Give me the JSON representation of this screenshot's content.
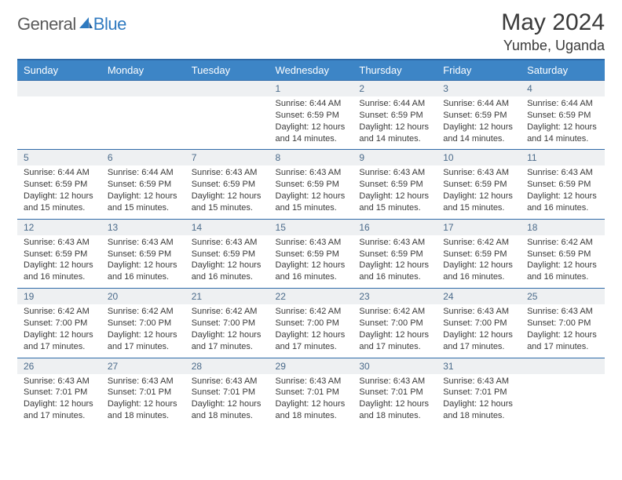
{
  "brand": {
    "part1": "General",
    "part2": "Blue"
  },
  "title": "May 2024",
  "location": "Yumbe, Uganda",
  "colors": {
    "header_bg": "#3d85c6",
    "header_text": "#ffffff",
    "rule": "#2f6aa8",
    "date_bg": "#eef0f2",
    "date_text": "#4a6a8a",
    "body_text": "#3a3a3a",
    "brand_gray": "#5a5a5a",
    "brand_blue": "#2f7ac0"
  },
  "typography": {
    "title_fontsize": 30,
    "location_fontsize": 18,
    "dayhead_fontsize": 13,
    "date_fontsize": 12,
    "info_fontsize": 11
  },
  "day_names": [
    "Sunday",
    "Monday",
    "Tuesday",
    "Wednesday",
    "Thursday",
    "Friday",
    "Saturday"
  ],
  "weeks": [
    {
      "dates": [
        "",
        "",
        "",
        "1",
        "2",
        "3",
        "4"
      ],
      "info": [
        "",
        "",
        "",
        "Sunrise: 6:44 AM\nSunset: 6:59 PM\nDaylight: 12 hours and 14 minutes.",
        "Sunrise: 6:44 AM\nSunset: 6:59 PM\nDaylight: 12 hours and 14 minutes.",
        "Sunrise: 6:44 AM\nSunset: 6:59 PM\nDaylight: 12 hours and 14 minutes.",
        "Sunrise: 6:44 AM\nSunset: 6:59 PM\nDaylight: 12 hours and 14 minutes."
      ]
    },
    {
      "dates": [
        "5",
        "6",
        "7",
        "8",
        "9",
        "10",
        "11"
      ],
      "info": [
        "Sunrise: 6:44 AM\nSunset: 6:59 PM\nDaylight: 12 hours and 15 minutes.",
        "Sunrise: 6:44 AM\nSunset: 6:59 PM\nDaylight: 12 hours and 15 minutes.",
        "Sunrise: 6:43 AM\nSunset: 6:59 PM\nDaylight: 12 hours and 15 minutes.",
        "Sunrise: 6:43 AM\nSunset: 6:59 PM\nDaylight: 12 hours and 15 minutes.",
        "Sunrise: 6:43 AM\nSunset: 6:59 PM\nDaylight: 12 hours and 15 minutes.",
        "Sunrise: 6:43 AM\nSunset: 6:59 PM\nDaylight: 12 hours and 15 minutes.",
        "Sunrise: 6:43 AM\nSunset: 6:59 PM\nDaylight: 12 hours and 16 minutes."
      ]
    },
    {
      "dates": [
        "12",
        "13",
        "14",
        "15",
        "16",
        "17",
        "18"
      ],
      "info": [
        "Sunrise: 6:43 AM\nSunset: 6:59 PM\nDaylight: 12 hours and 16 minutes.",
        "Sunrise: 6:43 AM\nSunset: 6:59 PM\nDaylight: 12 hours and 16 minutes.",
        "Sunrise: 6:43 AM\nSunset: 6:59 PM\nDaylight: 12 hours and 16 minutes.",
        "Sunrise: 6:43 AM\nSunset: 6:59 PM\nDaylight: 12 hours and 16 minutes.",
        "Sunrise: 6:43 AM\nSunset: 6:59 PM\nDaylight: 12 hours and 16 minutes.",
        "Sunrise: 6:42 AM\nSunset: 6:59 PM\nDaylight: 12 hours and 16 minutes.",
        "Sunrise: 6:42 AM\nSunset: 6:59 PM\nDaylight: 12 hours and 16 minutes."
      ]
    },
    {
      "dates": [
        "19",
        "20",
        "21",
        "22",
        "23",
        "24",
        "25"
      ],
      "info": [
        "Sunrise: 6:42 AM\nSunset: 7:00 PM\nDaylight: 12 hours and 17 minutes.",
        "Sunrise: 6:42 AM\nSunset: 7:00 PM\nDaylight: 12 hours and 17 minutes.",
        "Sunrise: 6:42 AM\nSunset: 7:00 PM\nDaylight: 12 hours and 17 minutes.",
        "Sunrise: 6:42 AM\nSunset: 7:00 PM\nDaylight: 12 hours and 17 minutes.",
        "Sunrise: 6:42 AM\nSunset: 7:00 PM\nDaylight: 12 hours and 17 minutes.",
        "Sunrise: 6:43 AM\nSunset: 7:00 PM\nDaylight: 12 hours and 17 minutes.",
        "Sunrise: 6:43 AM\nSunset: 7:00 PM\nDaylight: 12 hours and 17 minutes."
      ]
    },
    {
      "dates": [
        "26",
        "27",
        "28",
        "29",
        "30",
        "31",
        ""
      ],
      "info": [
        "Sunrise: 6:43 AM\nSunset: 7:01 PM\nDaylight: 12 hours and 17 minutes.",
        "Sunrise: 6:43 AM\nSunset: 7:01 PM\nDaylight: 12 hours and 18 minutes.",
        "Sunrise: 6:43 AM\nSunset: 7:01 PM\nDaylight: 12 hours and 18 minutes.",
        "Sunrise: 6:43 AM\nSunset: 7:01 PM\nDaylight: 12 hours and 18 minutes.",
        "Sunrise: 6:43 AM\nSunset: 7:01 PM\nDaylight: 12 hours and 18 minutes.",
        "Sunrise: 6:43 AM\nSunset: 7:01 PM\nDaylight: 12 hours and 18 minutes.",
        ""
      ]
    }
  ]
}
